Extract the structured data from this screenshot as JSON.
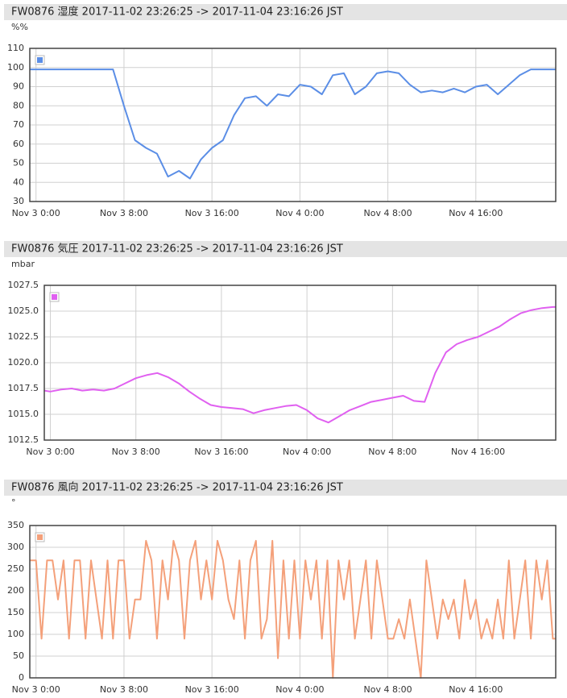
{
  "chart_data": [
    {
      "type": "line",
      "title": "FW0876 湿度 2017-11-02 23:26:25 -> 2017-11-04 23:16:26 JST",
      "y_label": "%%",
      "color": "#5b8ee6",
      "grid": true,
      "legend": "top-left",
      "xlim": [
        "Nov 2 23:26",
        "Nov 4 23:16"
      ],
      "xticks": [
        "Nov 3 0:00",
        "Nov 3 8:00",
        "Nov 3 16:00",
        "Nov 4 0:00",
        "Nov 4 8:00",
        "Nov 4 16:00"
      ],
      "ylim": [
        30,
        110
      ],
      "yticks": [
        30,
        40,
        50,
        60,
        70,
        80,
        90,
        100,
        110
      ],
      "x": [
        "Nov 2 23:26",
        "Nov 3 0:00",
        "Nov 3 1:00",
        "Nov 3 2:00",
        "Nov 3 3:00",
        "Nov 3 4:00",
        "Nov 3 5:00",
        "Nov 3 6:00",
        "Nov 3 7:00",
        "Nov 3 8:00",
        "Nov 3 9:00",
        "Nov 3 10:00",
        "Nov 3 11:00",
        "Nov 3 12:00",
        "Nov 3 13:00",
        "Nov 3 14:00",
        "Nov 3 15:00",
        "Nov 3 16:00",
        "Nov 3 17:00",
        "Nov 3 18:00",
        "Nov 3 19:00",
        "Nov 3 20:00",
        "Nov 3 21:00",
        "Nov 3 22:00",
        "Nov 3 23:00",
        "Nov 4 0:00",
        "Nov 4 1:00",
        "Nov 4 2:00",
        "Nov 4 3:00",
        "Nov 4 4:00",
        "Nov 4 5:00",
        "Nov 4 6:00",
        "Nov 4 7:00",
        "Nov 4 8:00",
        "Nov 4 9:00",
        "Nov 4 10:00",
        "Nov 4 11:00",
        "Nov 4 12:00",
        "Nov 4 13:00",
        "Nov 4 14:00",
        "Nov 4 15:00",
        "Nov 4 16:00",
        "Nov 4 17:00",
        "Nov 4 18:00",
        "Nov 4 19:00",
        "Nov 4 20:00",
        "Nov 4 21:00",
        "Nov 4 22:00",
        "Nov 4 23:00",
        "Nov 4 23:16"
      ],
      "values": [
        99,
        99,
        99,
        99,
        99,
        99,
        99,
        99,
        99,
        80,
        62,
        58,
        55,
        43,
        46,
        42,
        52,
        58,
        62,
        75,
        84,
        85,
        80,
        86,
        85,
        91,
        90,
        86,
        96,
        97,
        86,
        90,
        97,
        98,
        97,
        91,
        87,
        88,
        87,
        89,
        87,
        90,
        91,
        86,
        91,
        96,
        99,
        99,
        99,
        99
      ]
    },
    {
      "type": "line",
      "title": "FW0876 気圧 2017-11-02 23:26:25 -> 2017-11-04 23:16:26 JST",
      "y_label": "mbar",
      "color": "#e060f0",
      "grid": true,
      "legend": "top-left",
      "xlim": [
        "Nov 2 23:26",
        "Nov 4 23:16"
      ],
      "xticks": [
        "Nov 3 0:00",
        "Nov 3 8:00",
        "Nov 3 16:00",
        "Nov 4 0:00",
        "Nov 4 8:00",
        "Nov 4 16:00"
      ],
      "ylim": [
        1012.5,
        1027.5
      ],
      "yticks": [
        1012.5,
        {
          "value": 1015,
          "label": "1015.0"
        },
        1017.5,
        {
          "value": 1020,
          "label": "1020.0"
        },
        1022.5,
        {
          "value": 1025,
          "label": "1025.0"
        },
        1027.5
      ],
      "x": [
        "Nov 2 23:26",
        "Nov 3 0:00",
        "Nov 3 1:00",
        "Nov 3 2:00",
        "Nov 3 3:00",
        "Nov 3 4:00",
        "Nov 3 5:00",
        "Nov 3 6:00",
        "Nov 3 7:00",
        "Nov 3 8:00",
        "Nov 3 9:00",
        "Nov 3 10:00",
        "Nov 3 11:00",
        "Nov 3 12:00",
        "Nov 3 13:00",
        "Nov 3 14:00",
        "Nov 3 15:00",
        "Nov 3 16:00",
        "Nov 3 17:00",
        "Nov 3 18:00",
        "Nov 3 19:00",
        "Nov 3 20:00",
        "Nov 3 21:00",
        "Nov 3 22:00",
        "Nov 3 23:00",
        "Nov 4 0:00",
        "Nov 4 1:00",
        "Nov 4 2:00",
        "Nov 4 3:00",
        "Nov 4 4:00",
        "Nov 4 5:00",
        "Nov 4 6:00",
        "Nov 4 7:00",
        "Nov 4 8:00",
        "Nov 4 9:00",
        "Nov 4 10:00",
        "Nov 4 11:00",
        "Nov 4 12:00",
        "Nov 4 13:00",
        "Nov 4 14:00",
        "Nov 4 15:00",
        "Nov 4 16:00",
        "Nov 4 17:00",
        "Nov 4 18:00",
        "Nov 4 19:00",
        "Nov 4 20:00",
        "Nov 4 21:00",
        "Nov 4 22:00",
        "Nov 4 23:00",
        "Nov 4 23:16"
      ],
      "values": [
        1017.3,
        1017.2,
        1017.4,
        1017.5,
        1017.3,
        1017.4,
        1017.3,
        1017.5,
        1018.0,
        1018.5,
        1018.8,
        1019.0,
        1018.6,
        1018.0,
        1017.2,
        1016.5,
        1015.9,
        1015.7,
        1015.6,
        1015.5,
        1015.1,
        1015.4,
        1015.6,
        1015.8,
        1015.9,
        1015.4,
        1014.6,
        1014.2,
        1014.8,
        1015.4,
        1015.8,
        1016.2,
        1016.4,
        1016.6,
        1016.8,
        1016.3,
        1016.2,
        1019.0,
        1021.0,
        1021.8,
        1022.2,
        1022.5,
        1023.0,
        1023.5,
        1024.2,
        1024.8,
        1025.1,
        1025.3,
        1025.4,
        1025.4
      ]
    },
    {
      "type": "line",
      "title": "FW0876 風向 2017-11-02 23:26:25 -> 2017-11-04 23:16:26 JST",
      "y_label": "°",
      "color": "#f4a07a",
      "grid": true,
      "legend": "top-left",
      "xlim": [
        "Nov 2 23:26",
        "Nov 4 23:16"
      ],
      "xticks": [
        "Nov 3 0:00",
        "Nov 3 8:00",
        "Nov 3 16:00",
        "Nov 4 0:00",
        "Nov 4 8:00",
        "Nov 4 16:00"
      ],
      "ylim": [
        0,
        350
      ],
      "yticks": [
        0,
        50,
        100,
        150,
        200,
        250,
        300,
        350
      ],
      "x": [
        "Nov 2 23:26",
        "Nov 3 0:00",
        "Nov 3 0:30",
        "Nov 3 1:00",
        "Nov 3 1:30",
        "Nov 3 2:00",
        "Nov 3 2:30",
        "Nov 3 3:00",
        "Nov 3 3:30",
        "Nov 3 4:00",
        "Nov 3 4:30",
        "Nov 3 5:00",
        "Nov 3 5:30",
        "Nov 3 6:00",
        "Nov 3 6:30",
        "Nov 3 7:00",
        "Nov 3 7:30",
        "Nov 3 8:00",
        "Nov 3 8:30",
        "Nov 3 9:00",
        "Nov 3 9:30",
        "Nov 3 10:00",
        "Nov 3 10:30",
        "Nov 3 11:00",
        "Nov 3 11:30",
        "Nov 3 12:00",
        "Nov 3 12:30",
        "Nov 3 13:00",
        "Nov 3 13:30",
        "Nov 3 14:00",
        "Nov 3 14:30",
        "Nov 3 15:00",
        "Nov 3 15:30",
        "Nov 3 16:00",
        "Nov 3 16:30",
        "Nov 3 17:00",
        "Nov 3 17:30",
        "Nov 3 18:00",
        "Nov 3 18:30",
        "Nov 3 19:00",
        "Nov 3 19:30",
        "Nov 3 20:00",
        "Nov 3 20:30",
        "Nov 3 21:00",
        "Nov 3 21:30",
        "Nov 3 22:00",
        "Nov 3 22:30",
        "Nov 3 23:00",
        "Nov 3 23:30",
        "Nov 4 0:00",
        "Nov 4 0:30",
        "Nov 4 1:00",
        "Nov 4 1:30",
        "Nov 4 2:00",
        "Nov 4 2:30",
        "Nov 4 3:00",
        "Nov 4 3:30",
        "Nov 4 4:00",
        "Nov 4 4:30",
        "Nov 4 5:00",
        "Nov 4 5:30",
        "Nov 4 6:00",
        "Nov 4 6:30",
        "Nov 4 7:00",
        "Nov 4 7:30",
        "Nov 4 8:00",
        "Nov 4 8:30",
        "Nov 4 9:00",
        "Nov 4 9:30",
        "Nov 4 10:00",
        "Nov 4 10:30",
        "Nov 4 11:00",
        "Nov 4 11:30",
        "Nov 4 12:00",
        "Nov 4 12:30",
        "Nov 4 13:00",
        "Nov 4 13:30",
        "Nov 4 14:00",
        "Nov 4 14:30",
        "Nov 4 15:00",
        "Nov 4 15:30",
        "Nov 4 16:00",
        "Nov 4 16:30",
        "Nov 4 17:00",
        "Nov 4 17:30",
        "Nov 4 18:00",
        "Nov 4 18:30",
        "Nov 4 19:00",
        "Nov 4 19:30",
        "Nov 4 20:00",
        "Nov 4 20:30",
        "Nov 4 21:00",
        "Nov 4 21:30",
        "Nov 4 22:00",
        "Nov 4 22:30",
        "Nov 4 23:00",
        "Nov 4 23:16"
      ],
      "values": [
        270,
        270,
        90,
        270,
        270,
        180,
        270,
        90,
        270,
        270,
        90,
        270,
        180,
        90,
        270,
        90,
        270,
        270,
        90,
        180,
        180,
        315,
        270,
        90,
        270,
        180,
        315,
        270,
        90,
        270,
        315,
        180,
        270,
        180,
        315,
        270,
        180,
        135,
        270,
        90,
        270,
        315,
        90,
        135,
        315,
        45,
        270,
        90,
        270,
        90,
        270,
        180,
        270,
        90,
        270,
        0,
        270,
        180,
        270,
        90,
        180,
        270,
        90,
        270,
        180,
        90,
        90,
        135,
        90,
        180,
        90,
        0,
        270,
        180,
        90,
        180,
        135,
        180,
        90,
        225,
        135,
        180,
        90,
        135,
        90,
        180,
        90,
        270,
        90,
        180,
        270,
        90,
        270,
        180,
        270,
        90,
        90
      ]
    }
  ]
}
